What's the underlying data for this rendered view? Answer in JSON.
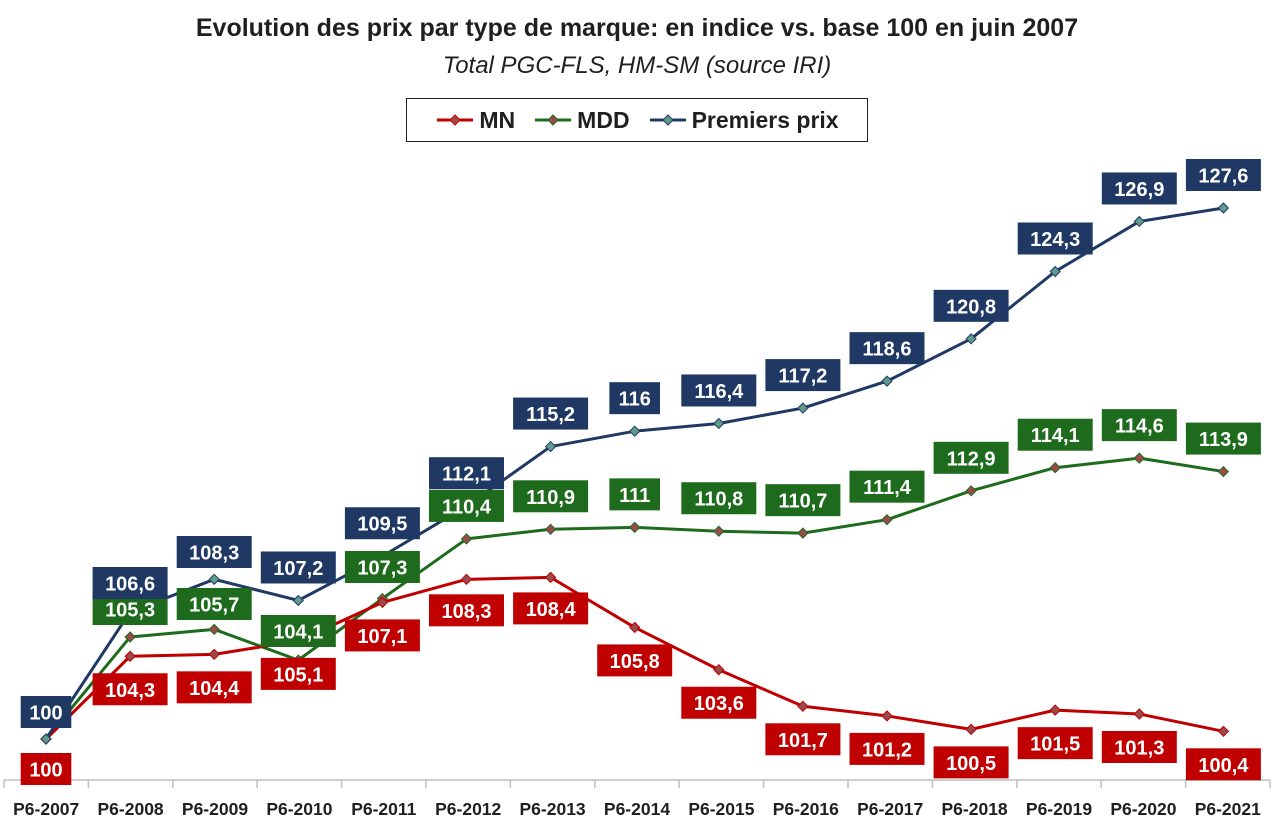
{
  "chart_data": {
    "type": "line",
    "title": "Evolution des prix par type de marque: en indice vs. base 100 en juin 2007",
    "subtitle": "Total PGC-FLS, HM-SM (source IRI)",
    "xlabel": "",
    "ylabel": "",
    "categories": [
      "P6-2007",
      "P6-2008",
      "P6-2009",
      "P6-2010",
      "P6-2011",
      "P6-2012",
      "P6-2013",
      "P6-2014",
      "P6-2015",
      "P6-2016",
      "P6-2017",
      "P6-2018",
      "P6-2019",
      "P6-2020",
      "P6-2021"
    ],
    "ylim": [
      99,
      129
    ],
    "grid": false,
    "legend": "top-center",
    "series": [
      {
        "name": "MN",
        "color": "#c00000",
        "values": [
          100,
          104.3,
          104.4,
          105.1,
          107.1,
          108.3,
          108.4,
          105.8,
          103.6,
          101.7,
          101.2,
          100.5,
          101.5,
          101.3,
          100.4
        ],
        "labels": [
          "100",
          "104,3",
          "104,4",
          "105,1",
          "107,1",
          "108,3",
          "108,4",
          "105,8",
          "103,6",
          "101,7",
          "101,2",
          "100,5",
          "101,5",
          "101,3",
          "100,4"
        ]
      },
      {
        "name": "MDD",
        "color": "#1e6b1e",
        "values": [
          100,
          105.3,
          105.7,
          104.1,
          107.3,
          110.4,
          110.9,
          111,
          110.8,
          110.7,
          111.4,
          112.9,
          114.1,
          114.6,
          113.9
        ],
        "labels": [
          "",
          "105,3",
          "105,7",
          "104,1",
          "107,3",
          "110,4",
          "110,9",
          "111",
          "110,8",
          "110,7",
          "111,4",
          "112,9",
          "114,1",
          "114,6",
          "113,9"
        ]
      },
      {
        "name": "Premiers prix",
        "color": "#1f3864",
        "values": [
          100,
          106.6,
          108.3,
          107.2,
          109.5,
          112.1,
          115.2,
          116,
          116.4,
          117.2,
          118.6,
          120.8,
          124.3,
          126.9,
          127.6
        ],
        "labels": [
          "100",
          "106,6",
          "108,3",
          "107,2",
          "109,5",
          "112,1",
          "115,2",
          "116",
          "116,4",
          "117,2",
          "118,6",
          "120,8",
          "124,3",
          "126,9",
          "127,6"
        ]
      }
    ]
  }
}
